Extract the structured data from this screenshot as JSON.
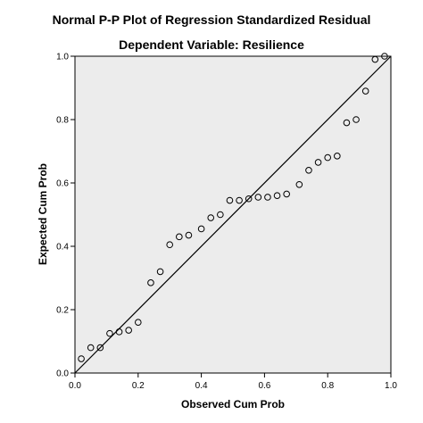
{
  "chart_data": {
    "type": "scatter",
    "title": "Normal P-P Plot of Regression Standardized Residual",
    "subtitle": "Dependent Variable: Resilience",
    "xlabel": "Observed Cum Prob",
    "ylabel": "Expected Cum Prob",
    "xlim": [
      0.0,
      1.0
    ],
    "ylim": [
      0.0,
      1.0
    ],
    "xticks": [
      "0.0",
      "0.2",
      "0.4",
      "0.6",
      "0.8",
      "1.0"
    ],
    "yticks": [
      "0.0",
      "0.2",
      "0.4",
      "0.6",
      "0.8",
      "1.0"
    ],
    "reference_line": {
      "from": [
        0.0,
        0.0
      ],
      "to": [
        1.0,
        1.0
      ]
    },
    "marker": "hollow-circle",
    "plot_background": "#ececec",
    "points": [
      {
        "x": 0.02,
        "y": 0.045
      },
      {
        "x": 0.05,
        "y": 0.08
      },
      {
        "x": 0.08,
        "y": 0.08
      },
      {
        "x": 0.11,
        "y": 0.125
      },
      {
        "x": 0.14,
        "y": 0.13
      },
      {
        "x": 0.17,
        "y": 0.135
      },
      {
        "x": 0.2,
        "y": 0.16
      },
      {
        "x": 0.24,
        "y": 0.285
      },
      {
        "x": 0.27,
        "y": 0.32
      },
      {
        "x": 0.3,
        "y": 0.405
      },
      {
        "x": 0.33,
        "y": 0.43
      },
      {
        "x": 0.36,
        "y": 0.435
      },
      {
        "x": 0.4,
        "y": 0.455
      },
      {
        "x": 0.43,
        "y": 0.49
      },
      {
        "x": 0.46,
        "y": 0.5
      },
      {
        "x": 0.49,
        "y": 0.545
      },
      {
        "x": 0.52,
        "y": 0.545
      },
      {
        "x": 0.55,
        "y": 0.55
      },
      {
        "x": 0.58,
        "y": 0.555
      },
      {
        "x": 0.61,
        "y": 0.555
      },
      {
        "x": 0.64,
        "y": 0.56
      },
      {
        "x": 0.67,
        "y": 0.565
      },
      {
        "x": 0.71,
        "y": 0.595
      },
      {
        "x": 0.74,
        "y": 0.64
      },
      {
        "x": 0.77,
        "y": 0.665
      },
      {
        "x": 0.8,
        "y": 0.68
      },
      {
        "x": 0.83,
        "y": 0.685
      },
      {
        "x": 0.86,
        "y": 0.79
      },
      {
        "x": 0.89,
        "y": 0.8
      },
      {
        "x": 0.92,
        "y": 0.89
      },
      {
        "x": 0.95,
        "y": 0.99
      },
      {
        "x": 0.98,
        "y": 1.0
      }
    ]
  }
}
